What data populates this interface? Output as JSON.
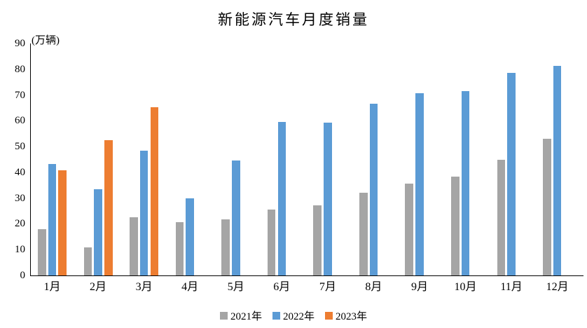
{
  "title": "新能源汽车月度销量",
  "chart_data": {
    "type": "bar",
    "title": "新能源汽车月度销量",
    "ylabel": "(万辆)",
    "xlabel": "",
    "ylim": [
      0,
      90
    ],
    "ytick_step": 10,
    "grid": false,
    "legend_position": "bottom",
    "categories": [
      "1月",
      "2月",
      "3月",
      "4月",
      "5月",
      "6月",
      "7月",
      "8月",
      "9月",
      "10月",
      "11月",
      "12月"
    ],
    "series": [
      {
        "name": "2021年",
        "color": "#A5A5A5",
        "values": [
          17.9,
          11.0,
          22.6,
          20.6,
          21.7,
          25.6,
          27.1,
          32.1,
          35.7,
          38.3,
          45.0,
          53.1
        ]
      },
      {
        "name": "2022年",
        "color": "#5B9BD5",
        "values": [
          43.1,
          33.4,
          48.4,
          29.9,
          44.7,
          59.6,
          59.3,
          66.6,
          70.8,
          71.4,
          78.6,
          81.4
        ]
      },
      {
        "name": "2023年",
        "color": "#ED7D31",
        "values": [
          40.8,
          52.5,
          65.3,
          null,
          null,
          null,
          null,
          null,
          null,
          null,
          null,
          null
        ]
      }
    ]
  }
}
